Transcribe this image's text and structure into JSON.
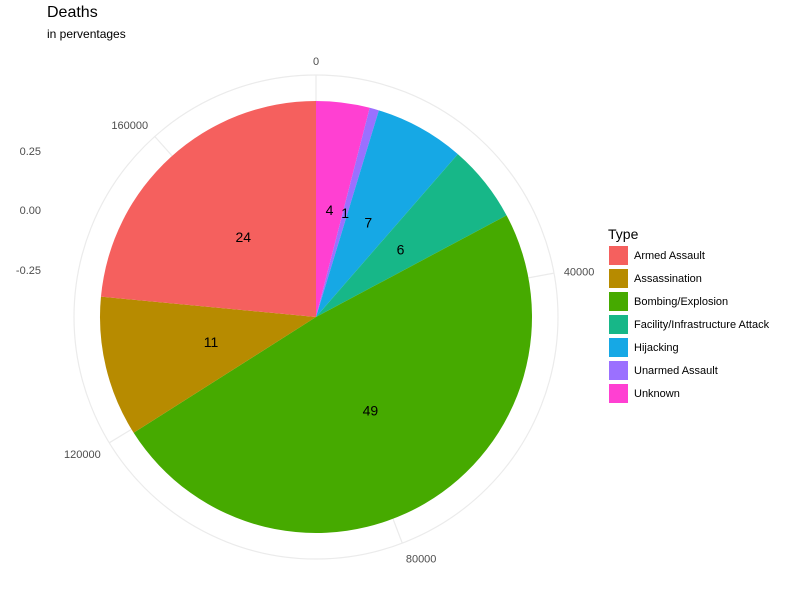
{
  "chart_data": {
    "type": "pie",
    "title": "Deaths",
    "subtitle": "in perventages",
    "legend_title": "Type",
    "legend_position": "right",
    "slices": [
      {
        "name": "Unknown",
        "value": 4,
        "label": "4",
        "color": "#FF40D2"
      },
      {
        "name": "Unarmed Assault",
        "value": 0.7,
        "label": "1",
        "color": "#9B70FF"
      },
      {
        "name": "Hijacking",
        "value": 6.7,
        "label": "7",
        "color": "#16A8E5"
      },
      {
        "name": "Facility/Infrastructure Attack",
        "value": 5.8,
        "label": "6",
        "color": "#17B788"
      },
      {
        "name": "Bombing/Explosion",
        "value": 48.8,
        "label": "49",
        "color": "#46AA00"
      },
      {
        "name": "Assassination",
        "value": 10.5,
        "label": "11",
        "color": "#B78B00"
      },
      {
        "name": "Armed Assault",
        "value": 23.5,
        "label": "24",
        "color": "#F5605E"
      }
    ],
    "legend": [
      {
        "name": "Armed Assault",
        "color": "#F5605E"
      },
      {
        "name": "Assassination",
        "color": "#B78B00"
      },
      {
        "name": "Bombing/Explosion",
        "color": "#46AA00"
      },
      {
        "name": "Facility/Infrastructure Attack",
        "color": "#17B788"
      },
      {
        "name": "Hijacking",
        "color": "#16A8E5"
      },
      {
        "name": "Unarmed Assault",
        "color": "#9B70FF"
      },
      {
        "name": "Unknown",
        "color": "#FF40D2"
      }
    ],
    "angular_ticks": [
      {
        "label": "0",
        "value": 0
      },
      {
        "label": "40000",
        "value": 40000
      },
      {
        "label": "80000",
        "value": 80000
      },
      {
        "label": "120000",
        "value": 120000
      },
      {
        "label": "160000",
        "value": 160000
      }
    ],
    "angular_total": 181000,
    "y_ticks": [
      "0.25",
      "0.00",
      "-0.25"
    ],
    "grid": true
  }
}
